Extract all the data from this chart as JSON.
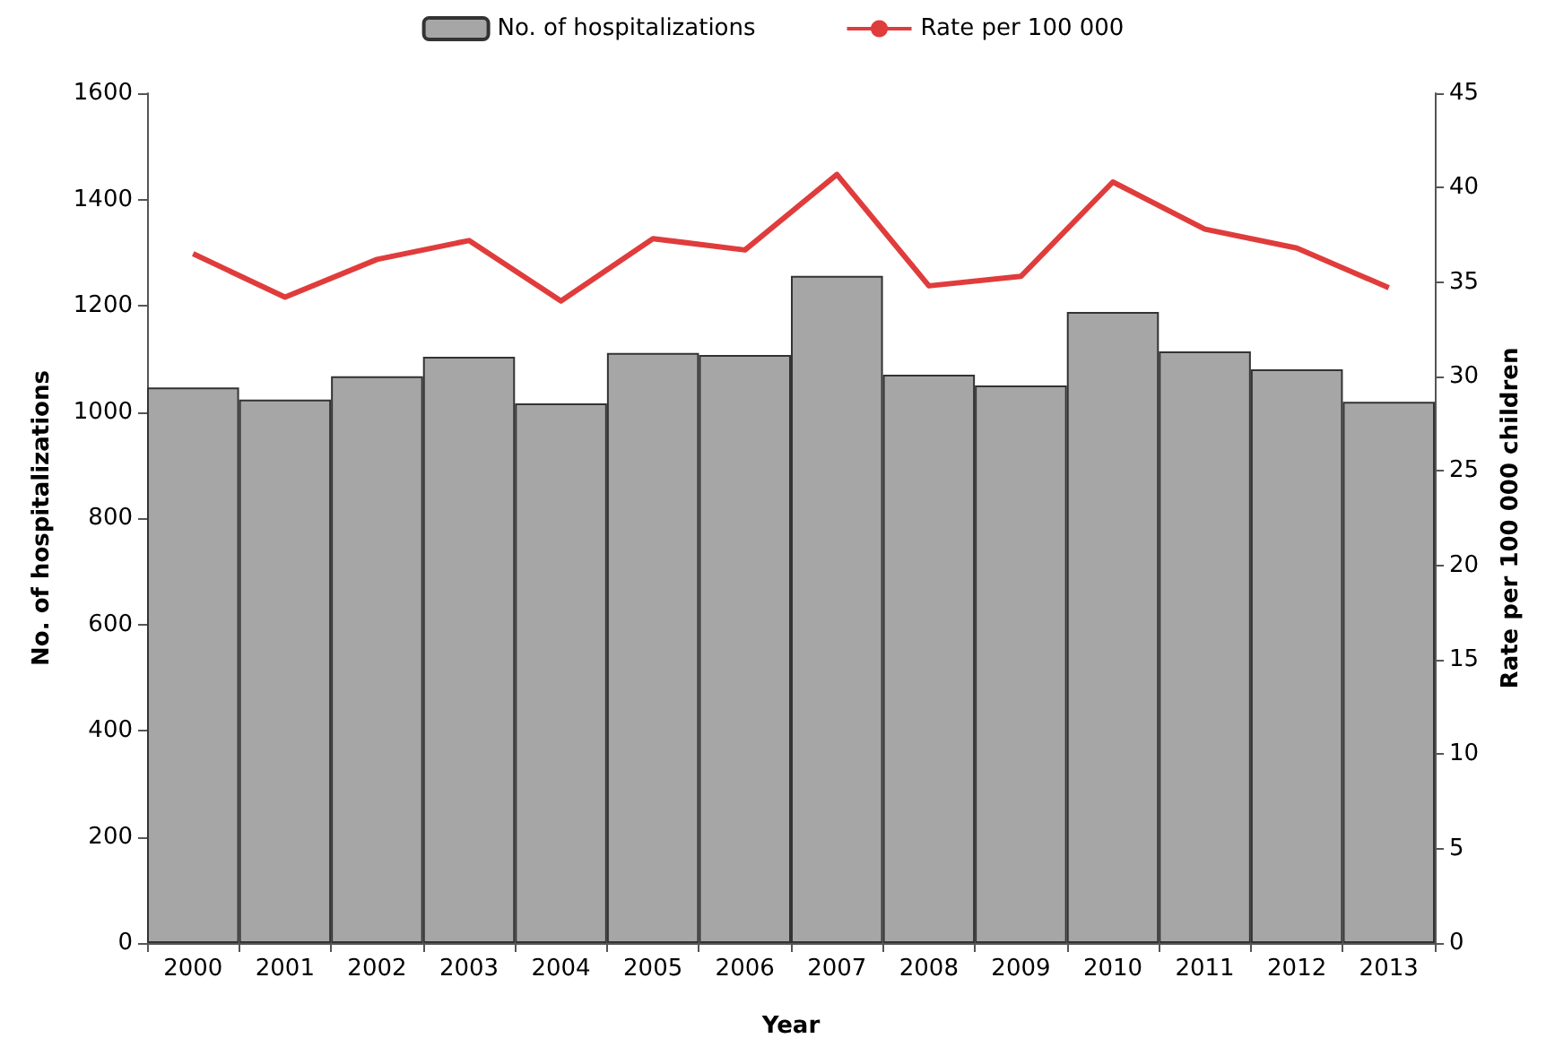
{
  "chart_data": {
    "type": "bar",
    "xlabel": "Year",
    "ylabel": "No. of hospitalizations",
    "y2label": "Rate per 100 000 children",
    "categories": [
      "2000",
      "2001",
      "2002",
      "2003",
      "2004",
      "2005",
      "2006",
      "2007",
      "2008",
      "2009",
      "2010",
      "2011",
      "2012",
      "2013"
    ],
    "series": [
      {
        "name": "No. of hospitalizations",
        "color": "#a6a6a6",
        "values": [
          1046,
          1023,
          1067,
          1104,
          1016,
          1111,
          1107,
          1256,
          1070,
          1050,
          1188,
          1114,
          1080,
          1019
        ]
      },
      {
        "name": "Rate per 100 000",
        "type": "line",
        "axis": "y2",
        "color": "#e03c3c",
        "values": [
          36.5,
          34.2,
          36.2,
          37.2,
          34.0,
          37.3,
          36.7,
          40.7,
          34.8,
          35.3,
          40.3,
          37.8,
          36.8,
          34.7
        ]
      }
    ],
    "ylim": [
      0,
      1600
    ],
    "yticks": [
      0,
      200,
      400,
      600,
      800,
      1000,
      1200,
      1400,
      1600
    ],
    "y2lim": [
      0,
      45
    ],
    "y2ticks": [
      0,
      5,
      10,
      15,
      20,
      25,
      30,
      35,
      40,
      45
    ],
    "grid": false,
    "legend": "top",
    "marker": "none"
  }
}
